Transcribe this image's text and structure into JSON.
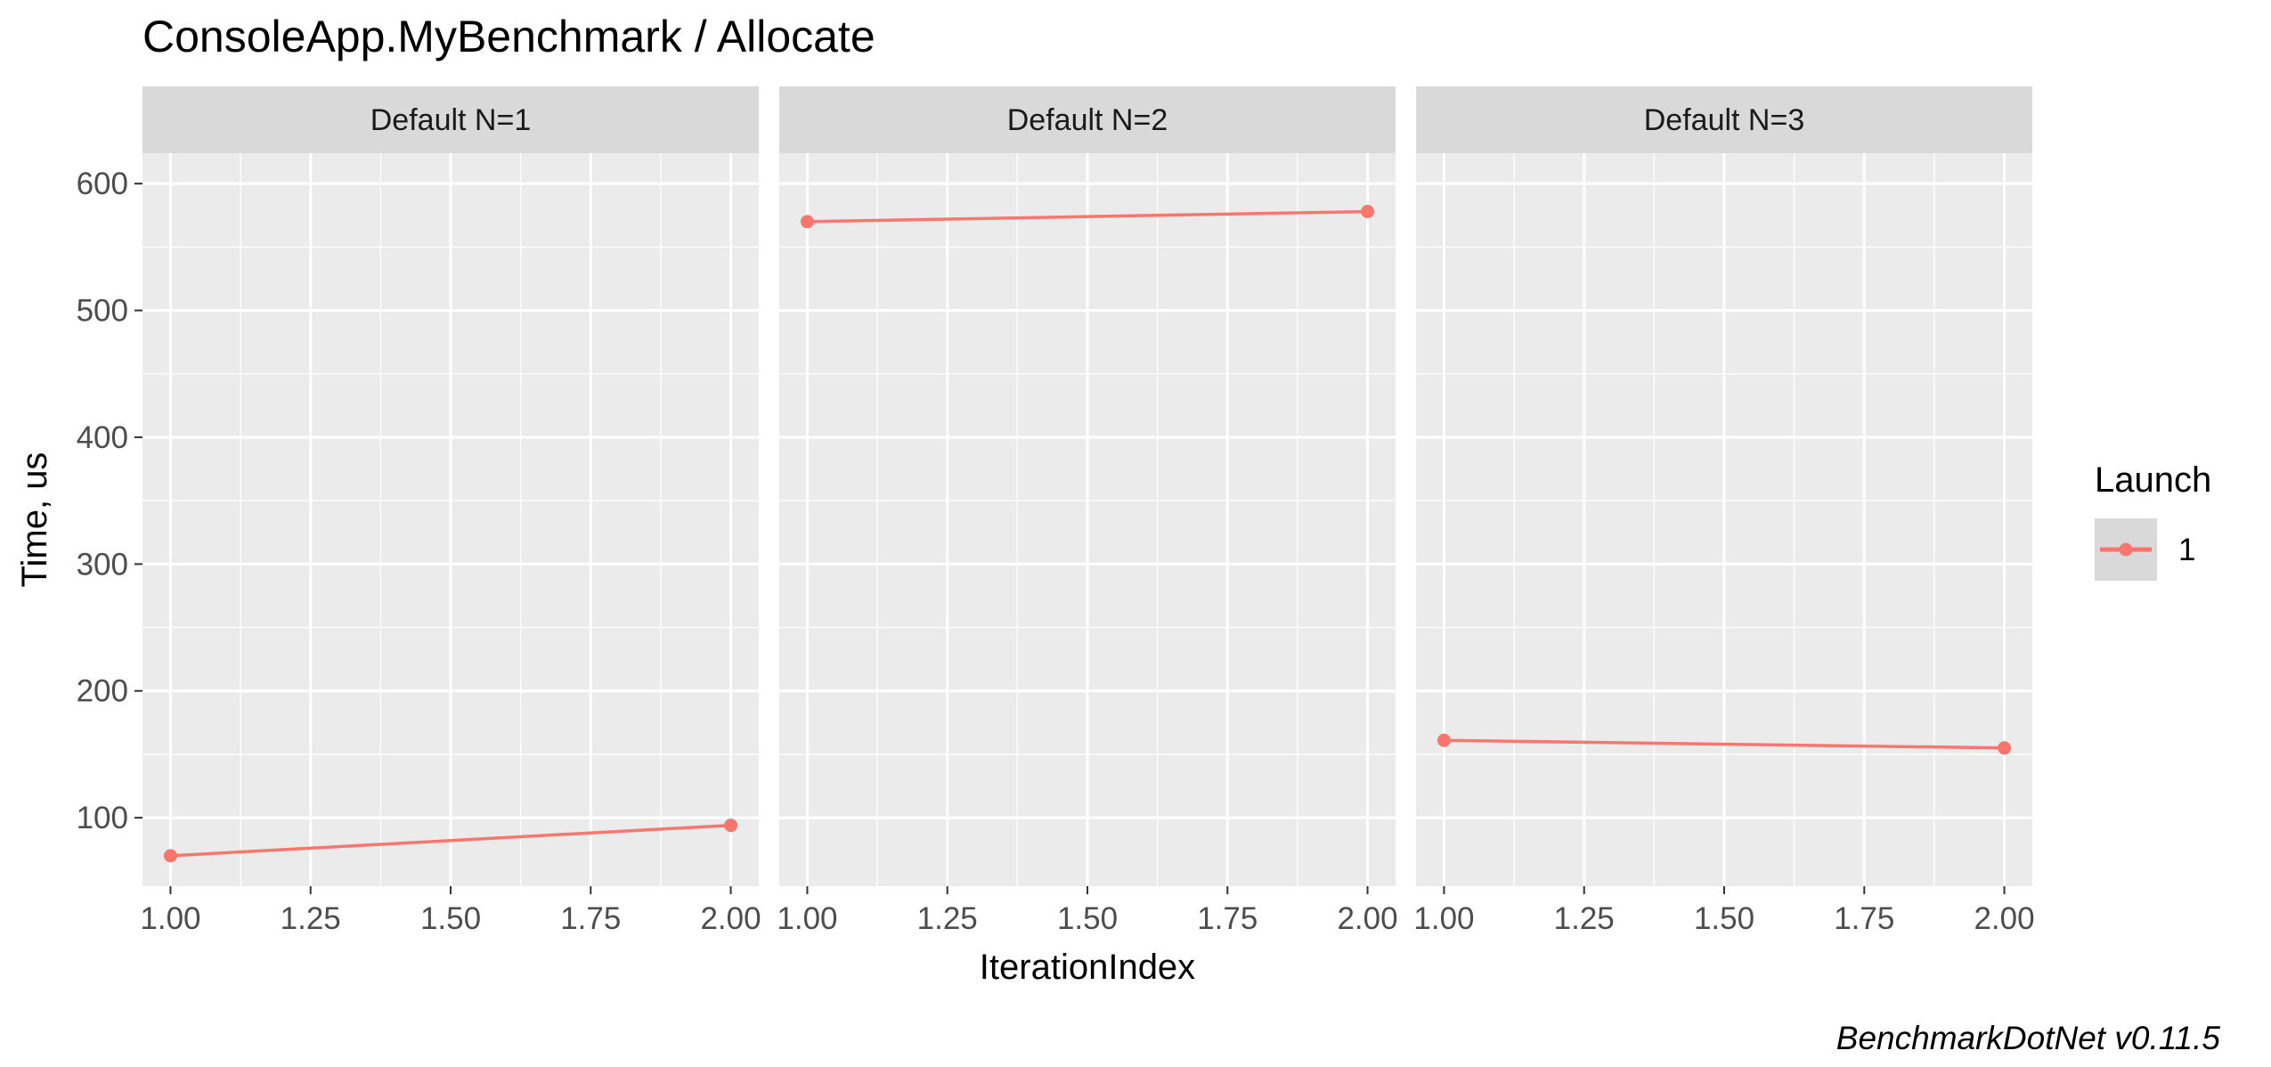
{
  "title": "ConsoleApp.MyBenchmark / Allocate",
  "caption": "BenchmarkDotNet v0.11.5",
  "colors": {
    "series": "#F8766D",
    "panel_bg": "#EBEBEB",
    "strip_bg": "#D9D9D9",
    "grid_major": "#FFFFFF",
    "text": "#000000",
    "tick_text": "#4D4D4D"
  },
  "chart_data": {
    "type": "line",
    "facet_type": "facet_wrap",
    "xlabel": "IterationIndex",
    "ylabel": "Time, us",
    "xlim": [
      0.95,
      2.05
    ],
    "ylim": [
      46,
      624
    ],
    "x_ticks": [
      "1.00",
      "1.25",
      "1.50",
      "1.75",
      "2.00"
    ],
    "x_tick_values": [
      1.0,
      1.25,
      1.5,
      1.75,
      2.0
    ],
    "y_ticks": [
      "100",
      "200",
      "300",
      "400",
      "500",
      "600"
    ],
    "y_tick_values": [
      100,
      200,
      300,
      400,
      500,
      600
    ],
    "grid": true,
    "legend": {
      "title": "Launch",
      "position": "right",
      "entries": [
        "1"
      ]
    },
    "panels": [
      {
        "strip": "Default N=1",
        "series": [
          {
            "name": "1",
            "x": [
              1.0,
              2.0
            ],
            "y": [
              70,
              94
            ]
          }
        ]
      },
      {
        "strip": "Default N=2",
        "series": [
          {
            "name": "1",
            "x": [
              1.0,
              2.0
            ],
            "y": [
              570,
              578
            ]
          }
        ]
      },
      {
        "strip": "Default N=3",
        "series": [
          {
            "name": "1",
            "x": [
              1.0,
              2.0
            ],
            "y": [
              161,
              155
            ]
          }
        ]
      }
    ]
  }
}
